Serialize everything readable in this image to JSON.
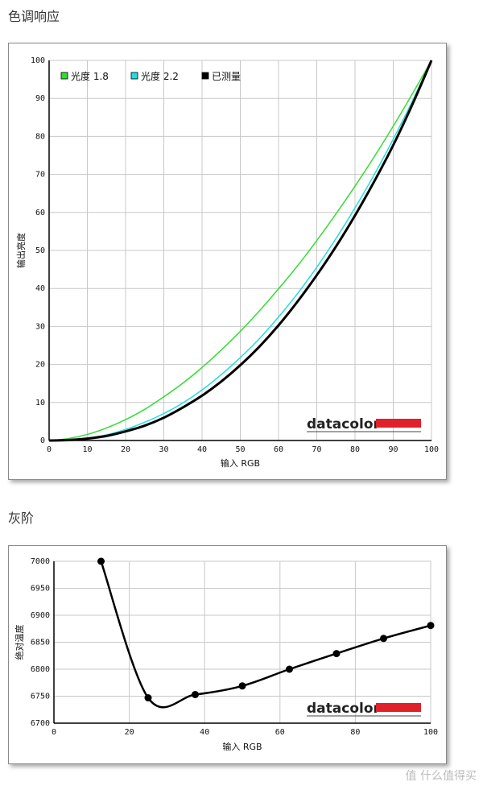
{
  "sections": [
    {
      "title": "色调响应"
    },
    {
      "title": "灰阶"
    }
  ],
  "brand_text": "datacolor",
  "watermark": "值 什么值得买",
  "chart_data": [
    {
      "type": "line",
      "title": "",
      "xlabel": "输入 RGB",
      "ylabel": "输出亮度",
      "xlim": [
        0,
        100
      ],
      "ylim": [
        0,
        100
      ],
      "xticks": [
        0,
        10,
        20,
        30,
        40,
        50,
        60,
        70,
        80,
        90,
        100
      ],
      "yticks": [
        0,
        10,
        20,
        30,
        40,
        50,
        60,
        70,
        80,
        90,
        100
      ],
      "grid": true,
      "legend_position": "top-left",
      "series": [
        {
          "name": "光度 1.8",
          "color": "#33dd33",
          "x": [
            0,
            5,
            10,
            15,
            20,
            25,
            30,
            35,
            40,
            45,
            50,
            55,
            60,
            65,
            70,
            75,
            80,
            85,
            90,
            95,
            100
          ],
          "y": [
            0,
            0.5,
            1.6,
            3.3,
            5.5,
            8.2,
            11.5,
            15.1,
            19.2,
            23.8,
            28.7,
            34.1,
            39.9,
            46.0,
            52.6,
            59.6,
            66.9,
            74.6,
            82.7,
            91.2,
            100
          ]
        },
        {
          "name": "光度 2.2",
          "color": "#22dddd",
          "x": [
            0,
            5,
            10,
            15,
            20,
            25,
            30,
            35,
            40,
            45,
            50,
            55,
            60,
            65,
            70,
            75,
            80,
            85,
            90,
            95,
            100
          ],
          "y": [
            0,
            0.1,
            0.6,
            1.5,
            2.9,
            4.8,
            7.1,
            9.9,
            13.3,
            17.3,
            21.8,
            26.8,
            32.5,
            38.7,
            45.6,
            53.1,
            61.2,
            69.9,
            79.3,
            89.3,
            100
          ]
        },
        {
          "name": "已测量",
          "color": "#000000",
          "x": [
            0,
            5,
            10,
            15,
            20,
            25,
            30,
            35,
            40,
            45,
            50,
            55,
            60,
            65,
            70,
            75,
            80,
            85,
            90,
            95,
            100
          ],
          "y": [
            0,
            0.1,
            0.5,
            1.2,
            2.4,
            3.9,
            6.0,
            8.7,
            11.8,
            15.5,
            19.8,
            24.7,
            30.3,
            36.6,
            43.5,
            51.0,
            59.2,
            68.1,
            77.7,
            88.4,
            100
          ]
        }
      ]
    },
    {
      "type": "line",
      "title": "",
      "xlabel": "输入 RGB",
      "ylabel": "绝对温度",
      "xlim": [
        0,
        100
      ],
      "ylim": [
        6700,
        7000
      ],
      "xticks": [
        0,
        20,
        40,
        60,
        80,
        100
      ],
      "yticks": [
        6700,
        6750,
        6800,
        6850,
        6900,
        6950,
        7000
      ],
      "grid": true,
      "series": [
        {
          "color": "#000000",
          "x": [
            12.5,
            25,
            37.5,
            50,
            62.5,
            75,
            87.5,
            100
          ],
          "y": [
            7000,
            6747,
            6753,
            6769,
            6800,
            6829,
            6857,
            6881
          ]
        }
      ]
    }
  ]
}
